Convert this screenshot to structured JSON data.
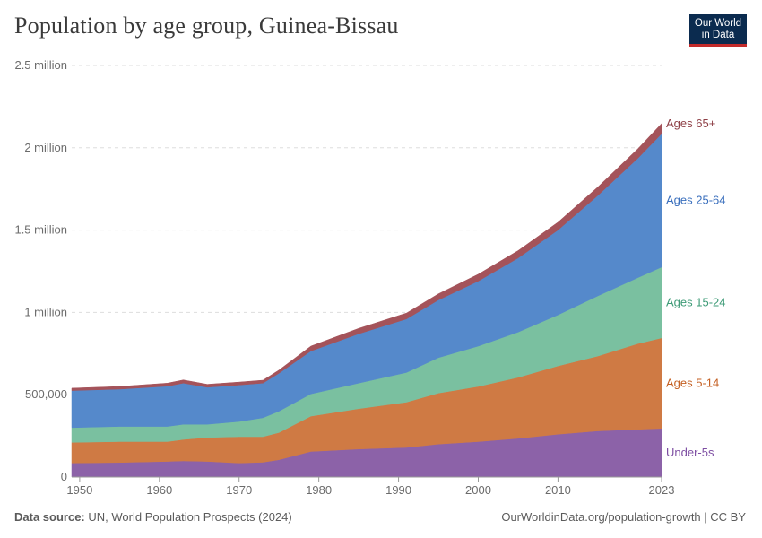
{
  "title": "Population by age group, Guinea-Bissau",
  "logo": {
    "line1": "Our World",
    "line2": "in Data"
  },
  "footer": {
    "source_label": "Data source:",
    "source_text": "UN, World Population Prospects (2024)",
    "url_text": "OurWorldinData.org/population-growth | CC BY"
  },
  "chart_data": {
    "type": "area",
    "stacked": true,
    "title": "Population by age group, Guinea-Bissau",
    "xlabel": "",
    "ylabel": "",
    "xlim": [
      1949,
      2023
    ],
    "ylim": [
      0,
      2500000
    ],
    "grid": true,
    "y_ticks": [
      {
        "value": 0,
        "label": "0"
      },
      {
        "value": 500000,
        "label": "500,000"
      },
      {
        "value": 1000000,
        "label": "1 million"
      },
      {
        "value": 1500000,
        "label": "1.5 million"
      },
      {
        "value": 2000000,
        "label": "2 million"
      },
      {
        "value": 2500000,
        "label": "2.5 million"
      }
    ],
    "x_ticks": [
      {
        "value": 1950,
        "label": "1950"
      },
      {
        "value": 1960,
        "label": "1960"
      },
      {
        "value": 1970,
        "label": "1970"
      },
      {
        "value": 1980,
        "label": "1980"
      },
      {
        "value": 1990,
        "label": "1990"
      },
      {
        "value": 2000,
        "label": "2000"
      },
      {
        "value": 2010,
        "label": "2010"
      },
      {
        "value": 2023,
        "label": "2023"
      }
    ],
    "x": [
      1949,
      1955,
      1961,
      1963,
      1966,
      1970,
      1973,
      1975,
      1979,
      1985,
      1991,
      1995,
      2000,
      2005,
      2010,
      2015,
      2020,
      2023
    ],
    "series": [
      {
        "name": "Under-5s",
        "color": "#8c62a8",
        "label_color": "#7e4fa3",
        "values": [
          85000,
          88000,
          95000,
          98000,
          95000,
          85000,
          90000,
          105000,
          155000,
          170000,
          180000,
          200000,
          215000,
          235000,
          260000,
          280000,
          290000,
          295000
        ]
      },
      {
        "name": "Ages 5-14",
        "color": "#cf7a44",
        "label_color": "#c45f22",
        "values": [
          125000,
          127000,
          120000,
          130000,
          145000,
          160000,
          155000,
          165000,
          215000,
          245000,
          275000,
          310000,
          335000,
          370000,
          415000,
          455000,
          520000,
          550000
        ]
      },
      {
        "name": "Ages 15-24",
        "color": "#7ac0a0",
        "label_color": "#3e9b77",
        "values": [
          90000,
          92000,
          92000,
          92000,
          80000,
          92000,
          115000,
          130000,
          135000,
          155000,
          180000,
          215000,
          245000,
          275000,
          310000,
          365000,
          400000,
          430000
        ]
      },
      {
        "name": "Ages 25-64",
        "color": "#5589cb",
        "label_color": "#3a6fbd",
        "values": [
          225000,
          227000,
          245000,
          250000,
          225000,
          222000,
          210000,
          230000,
          260000,
          300000,
          325000,
          350000,
          395000,
          450000,
          515000,
          610000,
          725000,
          810000
        ]
      },
      {
        "name": "Ages 65+",
        "color": "#a4535a",
        "label_color": "#8e3f46",
        "values": [
          15000,
          16000,
          18000,
          20000,
          18000,
          18000,
          18000,
          20000,
          30000,
          33000,
          36000,
          38000,
          42000,
          45000,
          48000,
          52000,
          58000,
          62000
        ]
      }
    ]
  }
}
